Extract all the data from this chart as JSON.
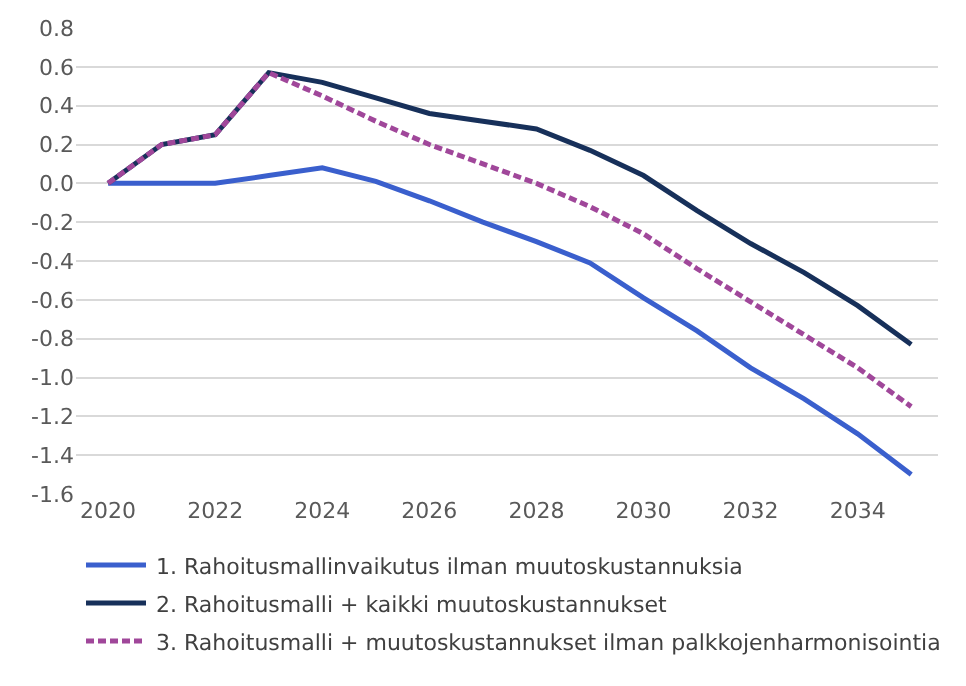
{
  "chart_data": {
    "type": "line",
    "x": [
      2020,
      2021,
      2022,
      2023,
      2024,
      2025,
      2026,
      2027,
      2028,
      2029,
      2030,
      2031,
      2032,
      2033,
      2034,
      2035
    ],
    "series": [
      {
        "name": "1. Rahoitusmallinvaikutus ilman muutoskustannuksia",
        "color": "#3a5fcd",
        "values": [
          0,
          0,
          0,
          0.04,
          0.08,
          0.01,
          -0.09,
          -0.2,
          -0.3,
          -0.41,
          -0.59,
          -0.76,
          -0.95,
          -1.11,
          -1.29,
          -1.5
        ]
      },
      {
        "name": "2. Rahoitusmalli + kaikki muutoskustannukset",
        "color": "#17305a",
        "values": [
          0,
          0.2,
          0.25,
          0.57,
          0.52,
          0.44,
          0.36,
          0.32,
          0.28,
          0.17,
          0.04,
          -0.14,
          -0.31,
          -0.46,
          -0.63,
          -0.83
        ]
      },
      {
        "name": "3. Rahoitusmalli + muutoskustannukset ilman palkkojenharmonisointia",
        "color": "#a0479a",
        "line_style": "dashed",
        "values": [
          0,
          0.2,
          0.25,
          0.57,
          0.45,
          0.32,
          0.2,
          0.1,
          0.0,
          -0.12,
          -0.26,
          -0.44,
          -0.61,
          -0.78,
          -0.95,
          -1.15
        ]
      }
    ],
    "xlim": [
      2019.4,
      2035.5
    ],
    "xticks": [
      2020,
      2022,
      2024,
      2026,
      2028,
      2030,
      2032,
      2034
    ],
    "ylim": [
      -1.6,
      0.8
    ],
    "yticks": [
      {
        "value": -1.6,
        "label": "-1.6"
      },
      {
        "value": -1.4,
        "label": "-1.4"
      },
      {
        "value": -1.2,
        "label": "-1.2"
      },
      {
        "value": -1.0,
        "label": "-1.0"
      },
      {
        "value": -0.8,
        "label": "-0.8"
      },
      {
        "value": -0.6,
        "label": "-0.6"
      },
      {
        "value": -0.4,
        "label": "-0.4"
      },
      {
        "value": -0.2,
        "label": "-0.2"
      },
      {
        "value": 0,
        "label": "0.0"
      },
      {
        "value": 0.2,
        "label": "0.2"
      },
      {
        "value": 0.4,
        "label": "0.4"
      },
      {
        "value": 0.6,
        "label": "0.6"
      },
      {
        "value": 0.8,
        "label": "0.8"
      }
    ],
    "grid": "y",
    "legend": "bottom",
    "marker": "none"
  }
}
